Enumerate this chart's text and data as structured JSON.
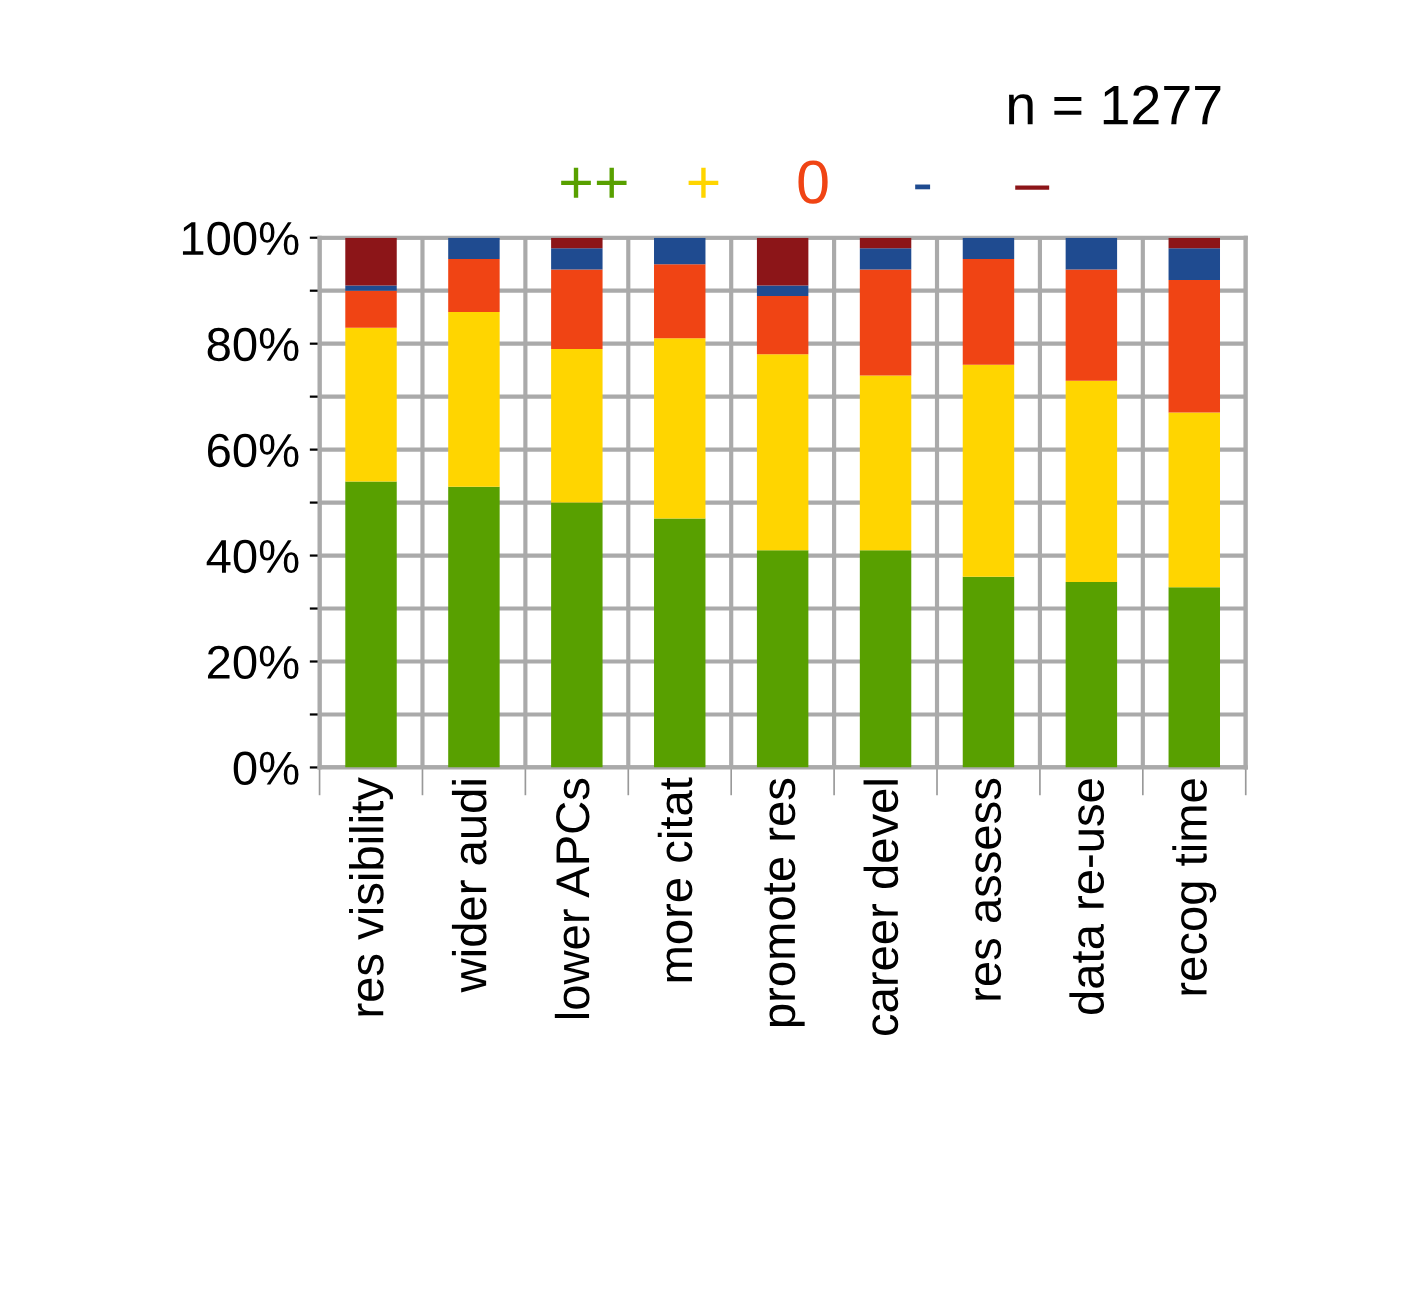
{
  "chart_data": {
    "type": "bar",
    "stacked": true,
    "categories": [
      "res visibility",
      "wider audi",
      "lower APCs",
      "more citat",
      "promote res",
      "career devel",
      "res assess",
      "data re-use",
      "recog time"
    ],
    "series": [
      {
        "name": "++",
        "color": "#58a000",
        "values": [
          54,
          53,
          50,
          47,
          41,
          41,
          36,
          35,
          34
        ]
      },
      {
        "name": "+",
        "color": "#ffd500",
        "values": [
          29,
          33,
          29,
          34,
          37,
          33,
          40,
          38,
          33
        ]
      },
      {
        "name": "0",
        "color": "#f04414",
        "values": [
          7,
          10,
          15,
          14,
          11,
          20,
          20,
          21,
          25
        ]
      },
      {
        "name": "-",
        "color": "#1f4b90",
        "values": [
          1,
          4,
          4,
          5,
          2,
          4,
          4,
          6,
          6
        ]
      },
      {
        "name": "–",
        "color": "#8c1518",
        "values": [
          9,
          0,
          2,
          0,
          9,
          2,
          0,
          0,
          2
        ]
      }
    ],
    "ylim": [
      0,
      100
    ],
    "yticks": [
      {
        "value": 0,
        "label": "0%"
      },
      {
        "value": 10,
        "label": null
      },
      {
        "value": 20,
        "label": "20%"
      },
      {
        "value": 30,
        "label": null
      },
      {
        "value": 40,
        "label": "40%"
      },
      {
        "value": 50,
        "label": null
      },
      {
        "value": 60,
        "label": "60%"
      },
      {
        "value": 70,
        "label": null
      },
      {
        "value": 80,
        "label": "80%"
      },
      {
        "value": 90,
        "label": null
      },
      {
        "value": 100,
        "label": "100%"
      }
    ],
    "grid": true,
    "legend": "top",
    "annotations": [
      "n = 1277"
    ]
  }
}
